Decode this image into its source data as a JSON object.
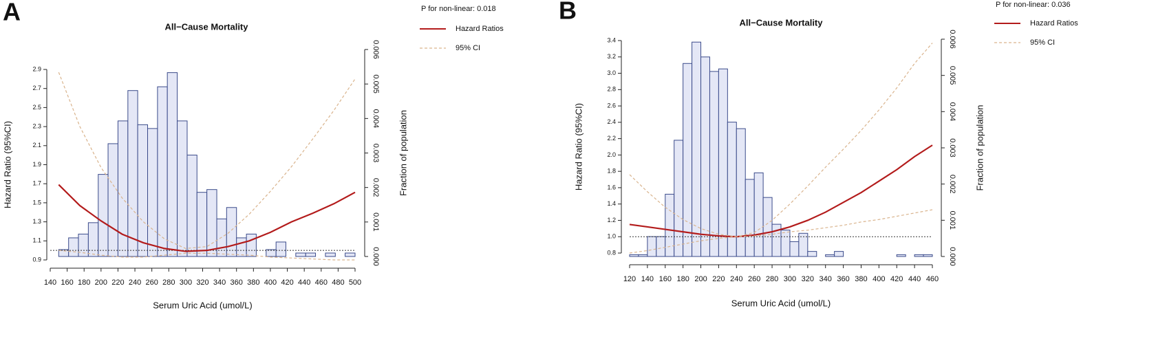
{
  "chart_data": [
    {
      "type": "line",
      "panel_label": "A",
      "title": "All−Cause Mortality",
      "x_label": "Serum Uric Acid (umol/L)",
      "y_label": "Hazard Ratio (95%CI)",
      "y2_label": "Fraction of population",
      "annotation": "P for non-linear: 0.018",
      "xlim": [
        140,
        500
      ],
      "xticks": [
        140,
        160,
        180,
        200,
        220,
        240,
        260,
        280,
        300,
        320,
        340,
        360,
        380,
        400,
        420,
        440,
        460,
        480,
        500
      ],
      "ylim": [
        0.9,
        2.9
      ],
      "yticks": [
        0.9,
        1.1,
        1.3,
        1.5,
        1.7,
        1.9,
        2.1,
        2.3,
        2.5,
        2.7,
        2.9
      ],
      "y2lim": [
        0,
        0.006
      ],
      "y2ticks": [
        {
          "value": 0,
          "label": "0.000"
        },
        {
          "value": 0.001,
          "label": "0.001"
        },
        {
          "value": 0.002,
          "label": "0.002"
        },
        {
          "value": 0.003,
          "label": "0.003"
        },
        {
          "value": 0.004,
          "label": "0.004"
        },
        {
          "value": 0.005,
          "label": "0.005"
        },
        {
          "value": 0.006,
          "label": "0.006"
        }
      ],
      "reference_line": 1,
      "histogram": {
        "axis": "y2",
        "color": "#e4e7f6",
        "edge_color": "#3a4a8a",
        "bins": [
          150,
          161.7,
          173.3,
          185,
          196.7,
          208.3,
          220,
          231.7,
          243.3,
          255,
          266.7,
          278.3,
          290,
          301.7,
          313.3,
          325,
          336.7,
          348.3,
          360,
          371.7,
          383.3,
          395,
          406.7,
          418.3,
          430,
          441.7,
          453.3,
          465,
          476.7,
          488.3,
          500
        ],
        "counts": [
          0.0002,
          0.00054,
          0.00065,
          0.00098,
          0.00238,
          0.00327,
          0.00393,
          0.00481,
          0.00382,
          0.00371,
          0.00492,
          0.00533,
          0.00393,
          0.00294,
          0.00186,
          0.00194,
          0.00109,
          0.00142,
          0.00054,
          0.00065,
          0,
          0.0002,
          0.00042,
          0,
          0.0001,
          0.0001,
          0,
          0.0001,
          0,
          0.0001
        ]
      },
      "x": [
        150,
        175,
        200,
        225,
        250,
        275,
        300,
        325,
        350,
        375,
        400,
        425,
        450,
        475,
        500
      ],
      "series": [
        {
          "name": "Hazard Ratios",
          "color": "#b31b1b",
          "values": [
            1.69,
            1.47,
            1.31,
            1.17,
            1.08,
            1.02,
            0.99,
            1.0,
            1.04,
            1.1,
            1.19,
            1.3,
            1.39,
            1.49,
            1.61
          ]
        },
        {
          "name": "95% CI",
          "color": "#d9b38c",
          "dashed": true,
          "values": [
            2.87,
            2.3,
            1.87,
            1.55,
            1.3,
            1.12,
            1.02,
            1.04,
            1.18,
            1.38,
            1.62,
            1.88,
            2.17,
            2.47,
            2.8
          ],
          "lower": [
            1.0,
            0.98,
            0.95,
            0.93,
            0.93,
            0.95,
            0.97,
            0.97,
            0.96,
            0.95,
            0.93,
            0.92,
            0.91,
            0.9,
            0.9
          ]
        }
      ]
    },
    {
      "type": "line",
      "panel_label": "B",
      "title": "All−Cause Mortality",
      "x_label": "Serum Uric Acid (umol/L)",
      "y_label": "Hazard Ratio (95%CI)",
      "y2_label": "Fraction of population",
      "annotation": "P for non-linear: 0.036",
      "xlim": [
        120,
        460
      ],
      "xticks": [
        120,
        140,
        160,
        180,
        200,
        220,
        240,
        260,
        280,
        300,
        320,
        340,
        360,
        380,
        400,
        420,
        440,
        460
      ],
      "ylim": [
        0.8,
        3.4
      ],
      "yticks": [
        0.8,
        {
          "value": 1,
          "label": "1.0"
        },
        1.2,
        1.4,
        1.6,
        1.8,
        {
          "value": 2,
          "label": "2.0"
        },
        2.2,
        2.4,
        2.6,
        2.8,
        {
          "value": 3,
          "label": "3.0"
        },
        3.2,
        3.4
      ],
      "y2lim": [
        0,
        0.006
      ],
      "y2ticks": [
        {
          "value": 0,
          "label": "0.000"
        },
        {
          "value": 0.001,
          "label": "0.001"
        },
        {
          "value": 0.002,
          "label": "0.002"
        },
        {
          "value": 0.003,
          "label": "0.003"
        },
        {
          "value": 0.004,
          "label": "0.004"
        },
        {
          "value": 0.005,
          "label": "0.005"
        },
        {
          "value": 0.006,
          "label": "0.006"
        }
      ],
      "reference_line": 1,
      "histogram": {
        "axis": "y2",
        "color": "#e4e7f6",
        "edge_color": "#3a4a8a",
        "bins": [
          120,
          130,
          140,
          150,
          160,
          170,
          180,
          190,
          200,
          210,
          220,
          230,
          240,
          250,
          260,
          270,
          280,
          290,
          300,
          310,
          320,
          330,
          340,
          350,
          360,
          370,
          380,
          390,
          400,
          410,
          420,
          430,
          440,
          450,
          460
        ],
        "counts": [
          5e-05,
          5e-05,
          0.00055,
          0.00055,
          0.00172,
          0.00321,
          0.00533,
          0.00592,
          0.00551,
          0.00511,
          0.00518,
          0.00371,
          0.00353,
          0.00213,
          0.00231,
          0.00163,
          0.00089,
          0.00073,
          0.00041,
          0.00064,
          0.00014,
          0,
          5e-05,
          0.00014,
          0,
          0,
          0,
          0,
          0,
          0,
          5e-05,
          0,
          5e-05,
          5e-05
        ]
      },
      "x": [
        120,
        140,
        160,
        180,
        200,
        220,
        240,
        260,
        280,
        300,
        320,
        340,
        360,
        380,
        400,
        420,
        440,
        460
      ],
      "series": [
        {
          "name": "Hazard Ratios",
          "color": "#b31b1b",
          "values": [
            1.15,
            1.12,
            1.09,
            1.06,
            1.03,
            1.01,
            1.0,
            1.02,
            1.06,
            1.12,
            1.2,
            1.3,
            1.42,
            1.54,
            1.68,
            1.82,
            1.98,
            2.12
          ]
        },
        {
          "name": "95% CI",
          "color": "#d9b38c",
          "dashed": true,
          "values": [
            1.76,
            1.55,
            1.36,
            1.21,
            1.1,
            1.03,
            1.0,
            1.05,
            1.2,
            1.4,
            1.62,
            1.85,
            2.07,
            2.3,
            2.55,
            2.82,
            3.12,
            3.37
          ],
          "lower": [
            0.8,
            0.83,
            0.87,
            0.91,
            0.95,
            0.98,
            1.0,
            1.01,
            1.03,
            1.06,
            1.08,
            1.11,
            1.14,
            1.18,
            1.21,
            1.25,
            1.29,
            1.33
          ]
        }
      ]
    }
  ]
}
